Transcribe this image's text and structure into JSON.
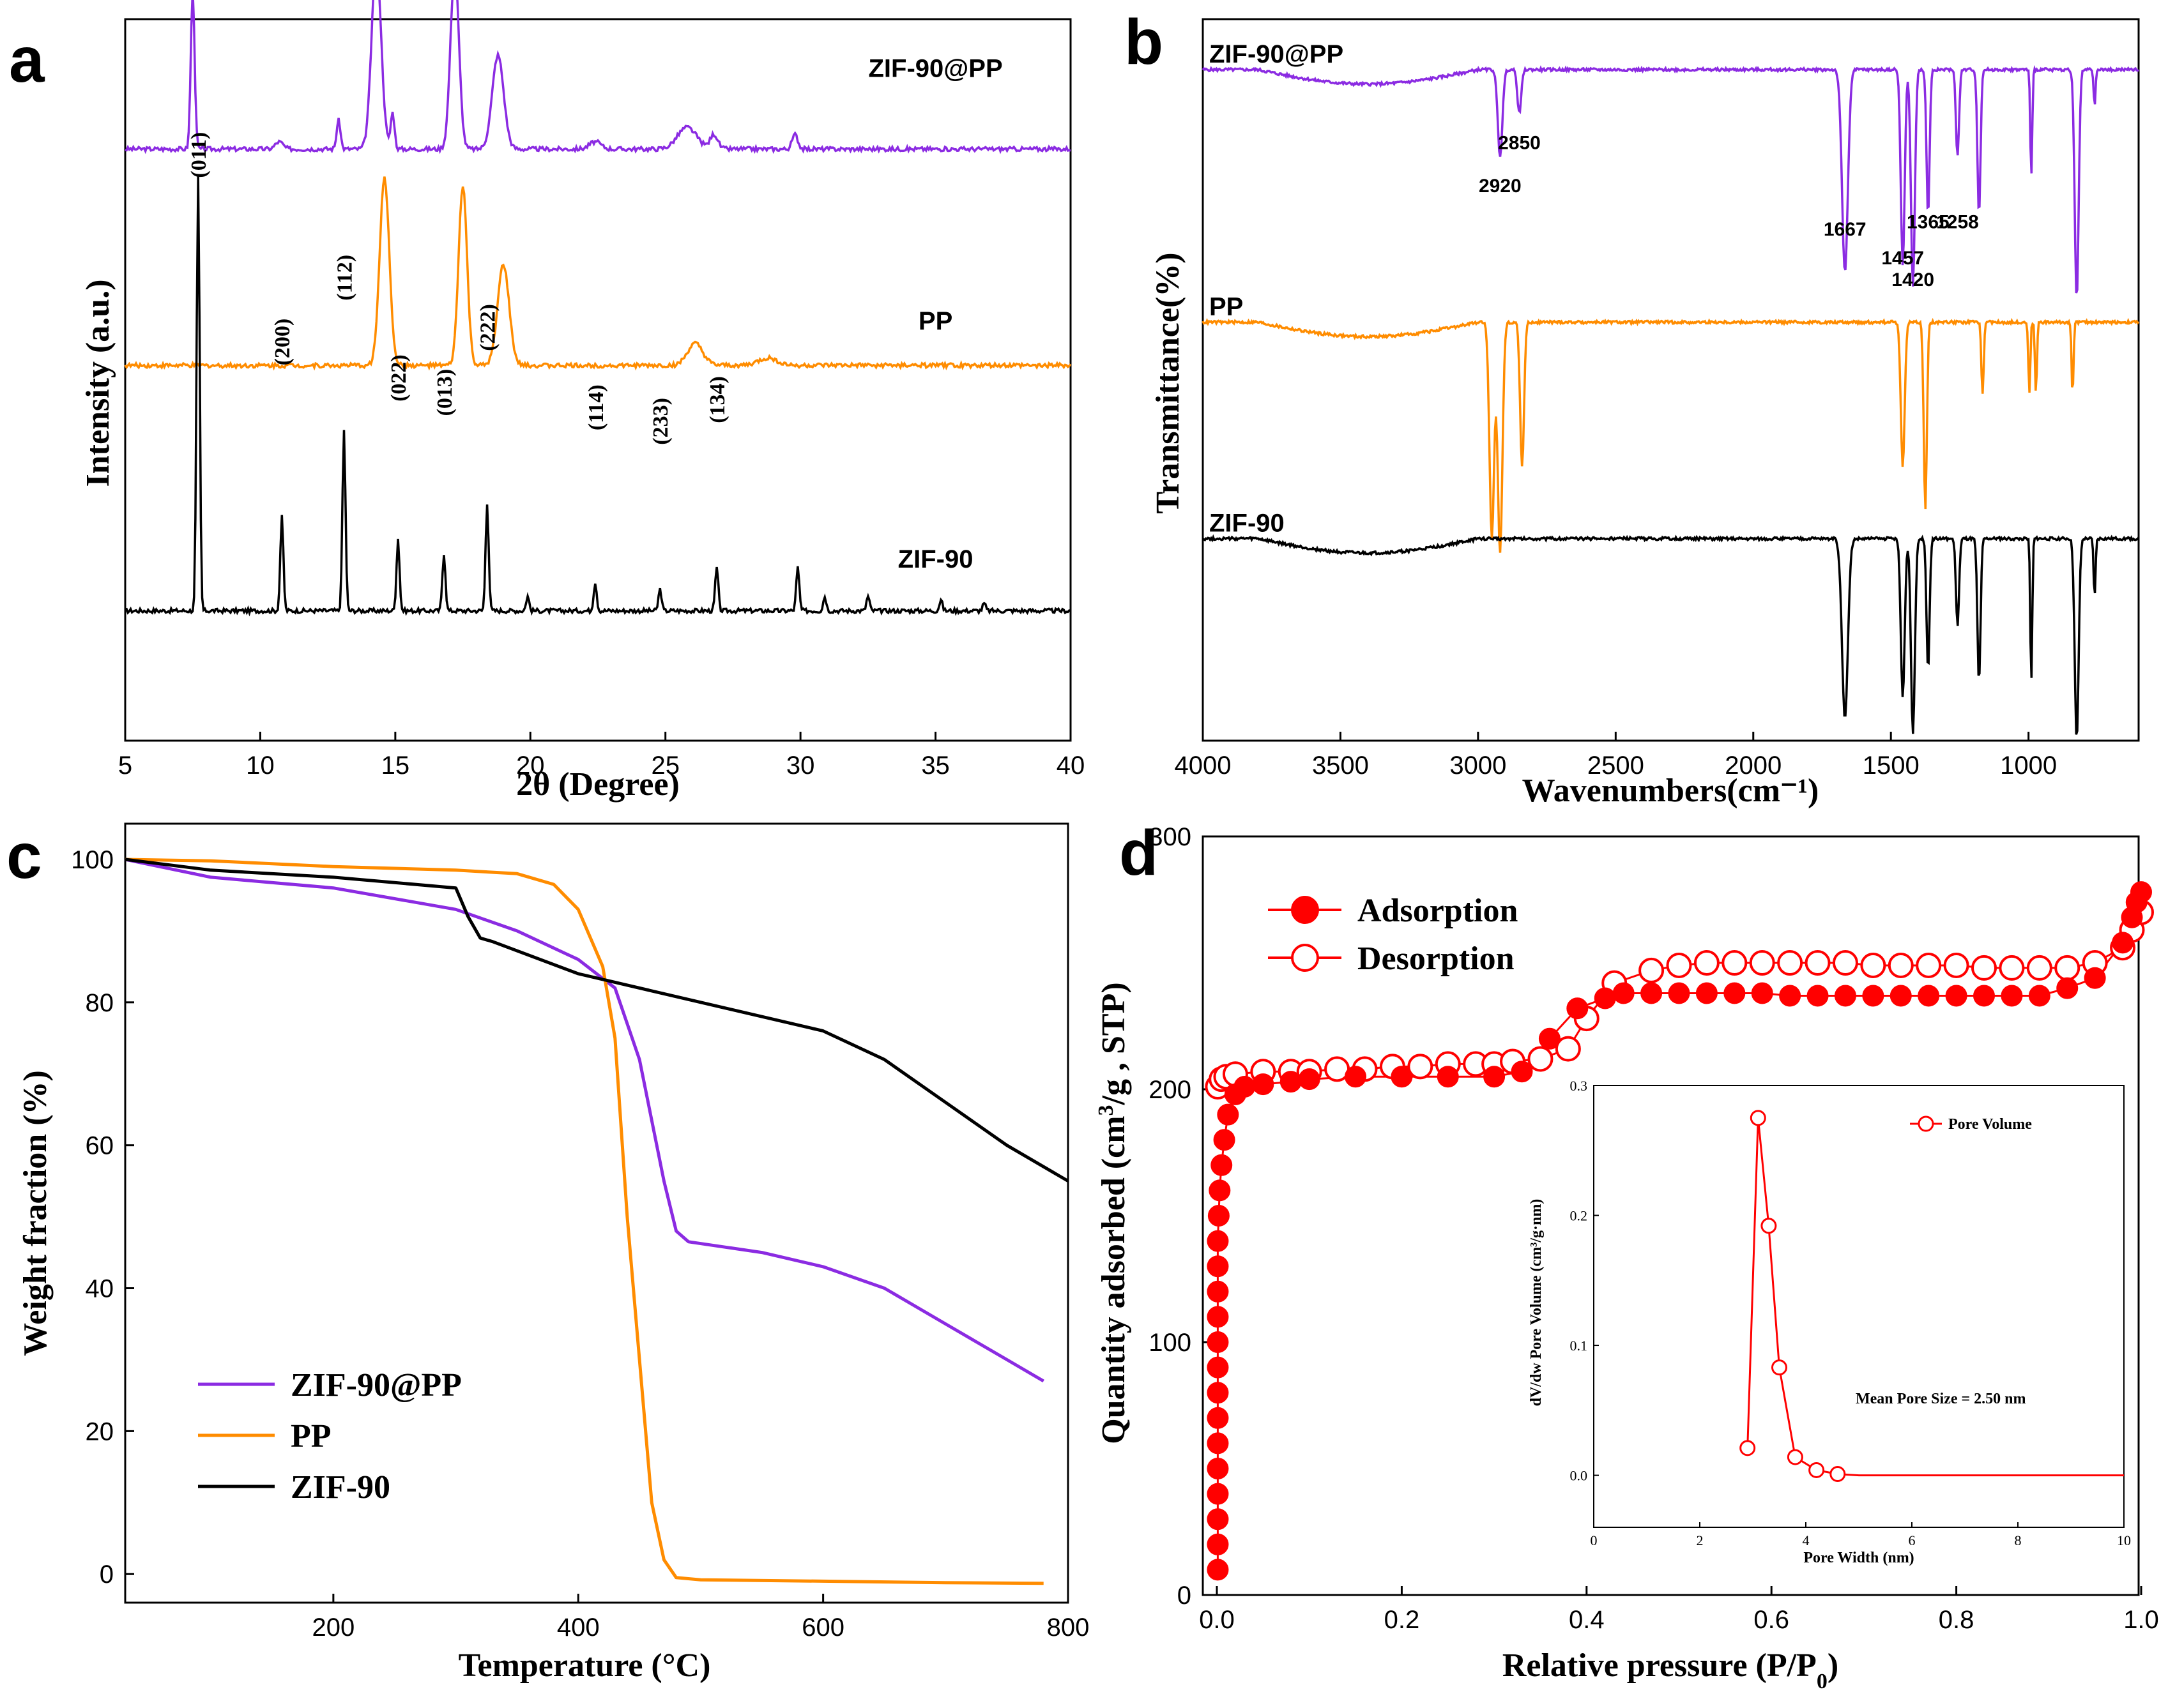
{
  "colors": {
    "zif90pp": "#8b2be2",
    "pp": "#ff8c00",
    "zif90": "#000000",
    "bet": "#ff0000"
  },
  "chart_data": [
    {
      "panel": "a",
      "type": "line",
      "title": "",
      "xlabel": "2θ (Degree)",
      "ylabel": "Intensity (a.u.)",
      "xlim": [
        5,
        40
      ],
      "xticks": [
        "5",
        "10",
        "15",
        "20",
        "25",
        "30",
        "35",
        "40"
      ],
      "series": [
        {
          "name": "ZIF-90@PP",
          "color": "#8b2be2",
          "baseline": 0.82,
          "peaks": [
            [
              7.5,
              0.22,
              0.1
            ],
            [
              10.7,
              0.01,
              0.2
            ],
            [
              12.9,
              0.04,
              0.1
            ],
            [
              14.3,
              0.26,
              0.25
            ],
            [
              14.9,
              0.05,
              0.1
            ],
            [
              17.2,
              0.25,
              0.22
            ],
            [
              18.8,
              0.13,
              0.3
            ],
            [
              22.4,
              0.01,
              0.3
            ],
            [
              25.8,
              0.03,
              0.5
            ],
            [
              26.8,
              0.02,
              0.2
            ],
            [
              29.8,
              0.02,
              0.15
            ]
          ]
        },
        {
          "name": "PP",
          "color": "#ff8c00",
          "baseline": 0.52,
          "peaks": [
            [
              14.6,
              0.26,
              0.25
            ],
            [
              17.5,
              0.25,
              0.22
            ],
            [
              19.0,
              0.14,
              0.3
            ],
            [
              26.1,
              0.03,
              0.4
            ],
            [
              28.8,
              0.01,
              0.5
            ]
          ]
        },
        {
          "name": "ZIF-90",
          "color": "#000000",
          "baseline": 0.18,
          "peaks": [
            [
              7.7,
              0.6,
              0.08
            ],
            [
              10.8,
              0.13,
              0.08
            ],
            [
              13.1,
              0.25,
              0.08
            ],
            [
              15.1,
              0.1,
              0.08
            ],
            [
              16.8,
              0.08,
              0.08
            ],
            [
              18.4,
              0.15,
              0.08
            ],
            [
              19.9,
              0.02,
              0.08
            ],
            [
              22.4,
              0.04,
              0.08
            ],
            [
              24.8,
              0.03,
              0.08
            ],
            [
              26.9,
              0.06,
              0.08
            ],
            [
              29.9,
              0.06,
              0.08
            ],
            [
              30.9,
              0.02,
              0.08
            ],
            [
              32.5,
              0.02,
              0.08
            ],
            [
              35.2,
              0.015,
              0.08
            ],
            [
              36.8,
              0.01,
              0.08
            ]
          ]
        }
      ],
      "reflection_labels": [
        {
          "text": "(011)",
          "x": 7.7,
          "y": 0.78
        },
        {
          "text": "(200)",
          "x": 10.8,
          "y": 0.52
        },
        {
          "text": "(112)",
          "x": 13.1,
          "y": 0.61
        },
        {
          "text": "(022)",
          "x": 15.1,
          "y": 0.47
        },
        {
          "text": "(013)",
          "x": 16.8,
          "y": 0.45
        },
        {
          "text": "(222)",
          "x": 18.4,
          "y": 0.54
        },
        {
          "text": "(114)",
          "x": 22.4,
          "y": 0.43
        },
        {
          "text": "(233)",
          "x": 24.8,
          "y": 0.41
        },
        {
          "text": "(134)",
          "x": 26.9,
          "y": 0.44
        }
      ],
      "series_labels": [
        {
          "text": "ZIF-90@PP",
          "x": 35,
          "y": 0.92
        },
        {
          "text": "PP",
          "x": 35,
          "y": 0.57
        },
        {
          "text": "ZIF-90",
          "x": 35,
          "y": 0.24
        }
      ]
    },
    {
      "panel": "b",
      "type": "line",
      "title": "",
      "xlabel": "Wavenumbers(cm⁻¹)",
      "ylabel": "Transmittance(%)",
      "xlim": [
        4000,
        600
      ],
      "xticks": [
        "4000",
        "3500",
        "3000",
        "2500",
        "2000",
        "1500",
        "1000"
      ],
      "series": [
        {
          "name": "ZIF-90@PP",
          "color": "#8b2be2",
          "baseline": 0.93,
          "dips": [
            [
              2920,
              0.12,
              12
            ],
            [
              2850,
              0.06,
              10
            ],
            [
              1667,
              0.28,
              15
            ],
            [
              1457,
              0.27,
              10
            ],
            [
              1420,
              0.3,
              10
            ],
            [
              1365,
              0.2,
              8
            ],
            [
              1258,
              0.12,
              8
            ],
            [
              1180,
              0.2,
              8
            ],
            [
              990,
              0.15,
              5
            ],
            [
              825,
              0.32,
              10
            ],
            [
              760,
              0.05,
              5
            ]
          ]
        },
        {
          "name": "PP",
          "color": "#ff8c00",
          "baseline": 0.58,
          "dips": [
            [
              2950,
              0.3,
              12
            ],
            [
              2920,
              0.32,
              12
            ],
            [
              2840,
              0.2,
              10
            ],
            [
              1457,
              0.2,
              10
            ],
            [
              1375,
              0.26,
              8
            ],
            [
              1167,
              0.1,
              6
            ],
            [
              997,
              0.1,
              5
            ],
            [
              973,
              0.1,
              5
            ],
            [
              840,
              0.1,
              5
            ]
          ]
        },
        {
          "name": "ZIF-90",
          "color": "#000000",
          "baseline": 0.28,
          "dips": [
            [
              1667,
              0.25,
              15
            ],
            [
              1457,
              0.22,
              10
            ],
            [
              1420,
              0.27,
              10
            ],
            [
              1365,
              0.18,
              8
            ],
            [
              1258,
              0.12,
              8
            ],
            [
              1180,
              0.2,
              8
            ],
            [
              990,
              0.2,
              5
            ],
            [
              825,
              0.28,
              10
            ],
            [
              760,
              0.08,
              5
            ]
          ]
        }
      ],
      "peak_labels": [
        {
          "text": "2920",
          "x": 2920,
          "y": 0.76
        },
        {
          "text": "2850",
          "x": 2850,
          "y": 0.82
        },
        {
          "text": "1667",
          "x": 1667,
          "y": 0.7
        },
        {
          "text": "1457",
          "x": 1457,
          "y": 0.66
        },
        {
          "text": "1420",
          "x": 1420,
          "y": 0.63
        },
        {
          "text": "1365",
          "x": 1365,
          "y": 0.71
        },
        {
          "text": "1258",
          "x": 1258,
          "y": 0.71
        }
      ],
      "series_labels": [
        {
          "text": "ZIF-90@PP",
          "x": 4000,
          "y": 1.0
        },
        {
          "text": "PP",
          "x": 4000,
          "y": 0.65
        },
        {
          "text": "ZIF-90",
          "x": 4000,
          "y": 0.35
        }
      ]
    },
    {
      "panel": "c",
      "type": "line",
      "title": "",
      "xlabel": "Temperature (°C)",
      "ylabel": "Weight fraction (%)",
      "xlim": [
        30,
        800
      ],
      "ylim": [
        -4,
        105
      ],
      "xticks": [
        "200",
        "400",
        "600",
        "800"
      ],
      "yticks": [
        "0",
        "20",
        "40",
        "60",
        "80",
        "100"
      ],
      "legend": "bottom-left",
      "series": [
        {
          "name": "ZIF-90@PP",
          "color": "#8b2be2",
          "x": [
            30,
            100,
            200,
            300,
            350,
            400,
            430,
            450,
            470,
            480,
            490,
            550,
            600,
            650,
            700,
            750,
            780
          ],
          "y": [
            100,
            97.5,
            96,
            93,
            90,
            86,
            82,
            72,
            55,
            48,
            46.5,
            45,
            43,
            40,
            35,
            30,
            27
          ]
        },
        {
          "name": "PP",
          "color": "#ff8c00",
          "x": [
            30,
            100,
            200,
            300,
            350,
            380,
            400,
            420,
            430,
            440,
            450,
            460,
            470,
            480,
            500,
            600,
            700,
            780
          ],
          "y": [
            100,
            99.8,
            99,
            98.5,
            98,
            96.5,
            93,
            85,
            75,
            50,
            30,
            10,
            2,
            -0.5,
            -0.8,
            -1,
            -1.2,
            -1.3
          ]
        },
        {
          "name": "ZIF-90",
          "color": "#000000",
          "x": [
            30,
            100,
            200,
            300,
            310,
            320,
            330,
            400,
            500,
            600,
            650,
            700,
            750,
            800
          ],
          "y": [
            100,
            98.5,
            97.5,
            96,
            92,
            89,
            88.5,
            84,
            80,
            76,
            72,
            66,
            60,
            55
          ]
        }
      ]
    },
    {
      "panel": "d",
      "type": "scatter",
      "title": "",
      "xlabel": "Relative pressure (P/P",
      "xlabel_sub": "0",
      "xlabel_end": ")",
      "ylabel_parts": [
        "Quantity adsorbed (cm",
        "3",
        "/g , STP)"
      ],
      "xlim": [
        0,
        1.0
      ],
      "ylim": [
        0,
        300
      ],
      "xticks": [
        "0.0",
        "0.2",
        "0.4",
        "0.6",
        "0.8",
        "1.0"
      ],
      "yticks": [
        "0",
        "100",
        "200",
        "300"
      ],
      "legend": "top-left",
      "series": [
        {
          "name": "Adsorption",
          "color": "#ff0000",
          "marker": "filled-circle",
          "x": [
            0.001,
            0.001,
            0.001,
            0.001,
            0.001,
            0.001,
            0.001,
            0.001,
            0.001,
            0.001,
            0.001,
            0.001,
            0.001,
            0.001,
            0.002,
            0.003,
            0.005,
            0.008,
            0.012,
            0.02,
            0.03,
            0.05,
            0.08,
            0.1,
            0.15,
            0.2,
            0.25,
            0.3,
            0.33,
            0.36,
            0.39,
            0.42,
            0.44,
            0.47,
            0.5,
            0.53,
            0.56,
            0.59,
            0.62,
            0.65,
            0.68,
            0.71,
            0.74,
            0.77,
            0.8,
            0.83,
            0.86,
            0.89,
            0.92,
            0.95,
            0.98,
            0.99,
            0.995,
            1.0
          ],
          "y": [
            10,
            20,
            30,
            40,
            50,
            60,
            70,
            80,
            90,
            100,
            110,
            120,
            130,
            140,
            150,
            160,
            170,
            180,
            190,
            198,
            201,
            202,
            203,
            204,
            205,
            205,
            205,
            205,
            207,
            220,
            232,
            236,
            238,
            238,
            238,
            238,
            238,
            238,
            237,
            237,
            237,
            237,
            237,
            237,
            237,
            237,
            237,
            237,
            240,
            244,
            258,
            268,
            274,
            278
          ]
        },
        {
          "name": "Desorption",
          "color": "#ff0000",
          "marker": "open-circle",
          "x": [
            0.001,
            0.005,
            0.01,
            0.02,
            0.05,
            0.08,
            0.1,
            0.13,
            0.16,
            0.19,
            0.22,
            0.25,
            0.28,
            0.3,
            0.32,
            0.35,
            0.38,
            0.4,
            0.43,
            0.47,
            0.5,
            0.53,
            0.56,
            0.59,
            0.62,
            0.65,
            0.68,
            0.71,
            0.74,
            0.77,
            0.8,
            0.83,
            0.86,
            0.89,
            0.92,
            0.95,
            0.98,
            0.99,
            1.0
          ],
          "y": [
            201,
            204,
            205,
            206,
            207,
            207,
            207,
            208,
            208,
            209,
            209,
            210,
            210,
            210,
            211,
            212,
            216,
            228,
            242,
            247,
            249,
            250,
            250,
            250,
            250,
            250,
            250,
            249,
            249,
            249,
            249,
            248,
            248,
            248,
            248,
            250,
            256,
            263,
            270
          ]
        }
      ],
      "inset": {
        "type": "line",
        "xlabel": "Pore Width (nm)",
        "ylabel": "dV/dw Pore Volume (cm³/g·nm)",
        "xlim": [
          0,
          10
        ],
        "ylim": [
          -0.04,
          0.3
        ],
        "xticks": [
          "0",
          "2",
          "4",
          "6",
          "8",
          "10"
        ],
        "yticks": [
          "0.0",
          "0.1",
          "0.2",
          "0.3"
        ],
        "legend": "Pore Volume",
        "annotation": "Mean Pore Size = 2.50 nm",
        "x": [
          2.9,
          3.1,
          3.3,
          3.5,
          3.8,
          4.2,
          4.6,
          5.0,
          6,
          7,
          8,
          9,
          10
        ],
        "y": [
          0.021,
          0.275,
          0.192,
          0.083,
          0.014,
          0.004,
          0.001,
          0,
          0,
          0,
          0,
          0,
          0
        ],
        "markers": 7
      }
    }
  ],
  "panel_letters": [
    "a",
    "b",
    "c",
    "d"
  ]
}
